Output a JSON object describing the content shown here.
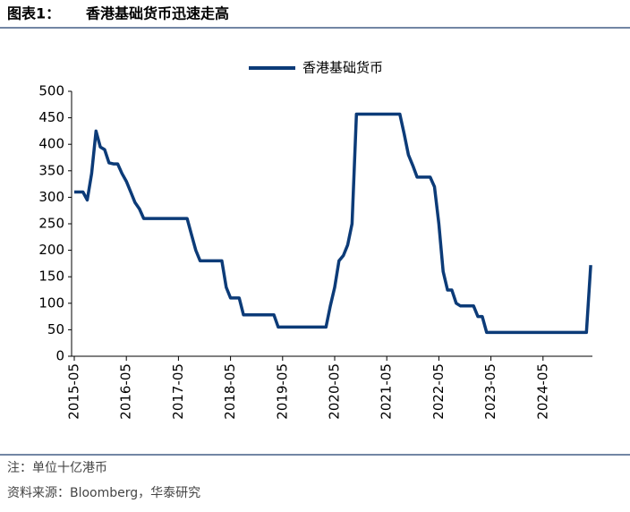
{
  "header": {
    "label": "图表1：",
    "title": "香港基础货币迅速走高"
  },
  "notes": [
    "注：单位十亿港币",
    "资料来源：Bloomberg，华泰研究"
  ],
  "chart_data": {
    "type": "line",
    "categories": [
      "2015-05",
      null,
      null,
      null,
      null,
      null,
      null,
      null,
      null,
      null,
      null,
      null,
      "2016-05",
      null,
      null,
      null,
      null,
      null,
      null,
      null,
      null,
      null,
      null,
      null,
      "2017-05",
      null,
      null,
      null,
      null,
      null,
      null,
      null,
      null,
      null,
      null,
      null,
      "2018-05",
      null,
      null,
      null,
      null,
      null,
      null,
      null,
      null,
      null,
      null,
      null,
      "2019-05",
      null,
      null,
      null,
      null,
      null,
      null,
      null,
      null,
      null,
      null,
      null,
      "2020-05",
      null,
      null,
      null,
      null,
      null,
      null,
      null,
      null,
      null,
      null,
      null,
      "2021-05",
      null,
      null,
      null,
      null,
      null,
      null,
      null,
      null,
      null,
      null,
      null,
      "2022-05",
      null,
      null,
      null,
      null,
      null,
      null,
      null,
      null,
      null,
      null,
      null,
      "2023-05",
      null,
      null,
      null,
      null,
      null,
      null,
      null,
      null,
      null,
      null,
      null,
      "2024-05",
      null,
      null,
      null,
      null,
      null,
      null,
      null,
      null,
      null,
      null,
      null
    ],
    "series": [
      {
        "name": "香港基础货币",
        "color": "#0c3b78",
        "values": [
          310,
          310,
          310,
          295,
          345,
          425,
          395,
          390,
          365,
          363,
          363,
          345,
          330,
          310,
          290,
          278,
          260,
          260,
          260,
          260,
          260,
          260,
          260,
          260,
          260,
          260,
          260,
          230,
          200,
          180,
          180,
          180,
          180,
          180,
          180,
          130,
          110,
          110,
          110,
          78,
          78,
          78,
          78,
          78,
          78,
          78,
          78,
          55,
          55,
          55,
          55,
          55,
          55,
          55,
          55,
          55,
          55,
          55,
          55,
          95,
          130,
          180,
          190,
          210,
          250,
          457,
          457,
          457,
          457,
          457,
          457,
          457,
          457,
          457,
          457,
          457,
          420,
          380,
          360,
          338,
          338,
          338,
          338,
          320,
          250,
          160,
          125,
          125,
          100,
          95,
          95,
          95,
          95,
          75,
          75,
          45,
          45,
          45,
          45,
          45,
          45,
          45,
          45,
          45,
          45,
          45,
          45,
          45,
          45,
          45,
          45,
          45,
          45,
          45,
          45,
          45,
          45,
          45,
          45,
          172
        ]
      }
    ],
    "ylim": [
      0,
      500
    ],
    "yticks": [
      0,
      50,
      100,
      150,
      200,
      250,
      300,
      350,
      400,
      450,
      500
    ],
    "legend": "top",
    "grid": false
  }
}
